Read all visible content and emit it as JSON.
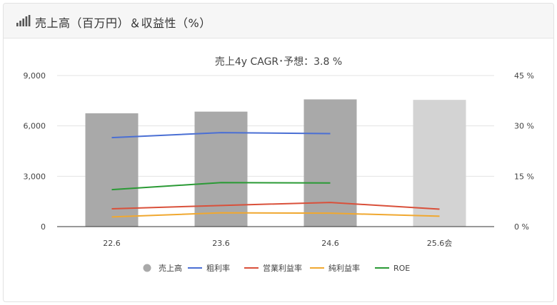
{
  "header": {
    "title": "売上高（百万円）＆収益性（%）",
    "icon": "bar-chart-icon"
  },
  "chart_data": {
    "type": "bar",
    "title": "売上4y CAGR･予想：3.8 %",
    "categories": [
      "22.6",
      "23.6",
      "24.6",
      "25.6会"
    ],
    "left_axis": {
      "ticks": [
        "0",
        "3,000",
        "6,000",
        "9,000"
      ],
      "min": 0,
      "max": 9000
    },
    "right_axis": {
      "ticks": [
        "0 %",
        "15 %",
        "30 %",
        "45 %"
      ],
      "min": 0,
      "max": 45
    },
    "bars": {
      "name": "売上高",
      "values": [
        6750,
        6850,
        7580,
        7550
      ],
      "colors": [
        "#a9a9a9",
        "#a9a9a9",
        "#a9a9a9",
        "#d3d3d3"
      ]
    },
    "series": [
      {
        "name": "粗利率",
        "color": "#4a6fd4",
        "values": [
          26.5,
          28.0,
          27.7,
          null
        ]
      },
      {
        "name": "営業利益率",
        "color": "#d9503a",
        "values": [
          5.3,
          6.3,
          7.2,
          5.2
        ]
      },
      {
        "name": "純利益率",
        "color": "#f0a830",
        "values": [
          2.9,
          4.1,
          4.0,
          3.1
        ]
      },
      {
        "name": "ROE",
        "color": "#2a9a35",
        "values": [
          11.0,
          13.1,
          13.0,
          null
        ]
      }
    ],
    "legend": {
      "position": "bottom",
      "bar_color": "#a9a9a9"
    },
    "grid": true
  }
}
